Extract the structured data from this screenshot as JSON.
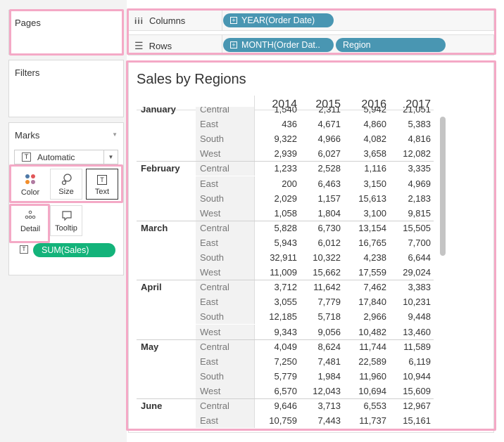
{
  "pages_card": {
    "title": "Pages"
  },
  "filters_card": {
    "title": "Filters"
  },
  "marks_card": {
    "title": "Marks",
    "mark_type": "Automatic",
    "buttons": {
      "color": "Color",
      "size": "Size",
      "text": "Text",
      "detail": "Detail",
      "tooltip": "Tooltip"
    },
    "field_pill": "SUM(Sales)"
  },
  "columns_shelf": {
    "label": "Columns",
    "pills": [
      "YEAR(Order Date)"
    ]
  },
  "rows_shelf": {
    "label": "Rows",
    "pills": [
      "MONTH(Order Dat..",
      "Region"
    ]
  },
  "view": {
    "title": "Sales by Regions",
    "years": [
      "2014",
      "2015",
      "2016",
      "2017"
    ],
    "partial_row": {
      "region": "Central",
      "values": [
        "1,540",
        "2,311",
        "5,942",
        "21,051"
      ]
    },
    "months": [
      {
        "name": "January",
        "rows": [
          {
            "region": "East",
            "values": [
              "436",
              "4,671",
              "4,860",
              "5,383"
            ]
          },
          {
            "region": "South",
            "values": [
              "9,322",
              "4,966",
              "4,082",
              "4,816"
            ]
          },
          {
            "region": "West",
            "values": [
              "2,939",
              "6,027",
              "3,658",
              "12,082"
            ]
          }
        ]
      },
      {
        "name": "February",
        "rows": [
          {
            "region": "Central",
            "values": [
              "1,233",
              "2,528",
              "1,116",
              "3,335"
            ]
          },
          {
            "region": "East",
            "values": [
              "200",
              "6,463",
              "3,150",
              "4,969"
            ]
          },
          {
            "region": "South",
            "values": [
              "2,029",
              "1,157",
              "15,613",
              "2,183"
            ]
          },
          {
            "region": "West",
            "values": [
              "1,058",
              "1,804",
              "3,100",
              "9,815"
            ]
          }
        ]
      },
      {
        "name": "March",
        "rows": [
          {
            "region": "Central",
            "values": [
              "5,828",
              "6,730",
              "13,154",
              "15,505"
            ]
          },
          {
            "region": "East",
            "values": [
              "5,943",
              "6,012",
              "16,765",
              "7,700"
            ]
          },
          {
            "region": "South",
            "values": [
              "32,911",
              "10,322",
              "4,238",
              "6,644"
            ]
          },
          {
            "region": "West",
            "values": [
              "11,009",
              "15,662",
              "17,559",
              "29,024"
            ]
          }
        ]
      },
      {
        "name": "April",
        "rows": [
          {
            "region": "Central",
            "values": [
              "3,712",
              "11,642",
              "7,462",
              "3,383"
            ]
          },
          {
            "region": "East",
            "values": [
              "3,055",
              "7,779",
              "17,840",
              "10,231"
            ]
          },
          {
            "region": "South",
            "values": [
              "12,185",
              "5,718",
              "2,966",
              "9,448"
            ]
          },
          {
            "region": "West",
            "values": [
              "9,343",
              "9,056",
              "10,482",
              "13,460"
            ]
          }
        ]
      },
      {
        "name": "May",
        "rows": [
          {
            "region": "Central",
            "values": [
              "4,049",
              "8,624",
              "11,744",
              "11,589"
            ]
          },
          {
            "region": "East",
            "values": [
              "7,250",
              "7,481",
              "22,589",
              "6,119"
            ]
          },
          {
            "region": "South",
            "values": [
              "5,779",
              "1,984",
              "11,960",
              "10,944"
            ]
          },
          {
            "region": "West",
            "values": [
              "6,570",
              "12,043",
              "10,694",
              "15,609"
            ]
          }
        ]
      },
      {
        "name": "June",
        "rows": [
          {
            "region": "Central",
            "values": [
              "9,646",
              "3,713",
              "6,553",
              "12,967"
            ]
          },
          {
            "region": "East",
            "values": [
              "10,759",
              "7,443",
              "11,737",
              "15,161"
            ]
          }
        ]
      }
    ]
  },
  "colors": {
    "pill_blue": "#4996b2",
    "pill_green": "#13b37a",
    "highlight_pink": "#f4a9c6",
    "band_gray": "#f2f2f2"
  }
}
